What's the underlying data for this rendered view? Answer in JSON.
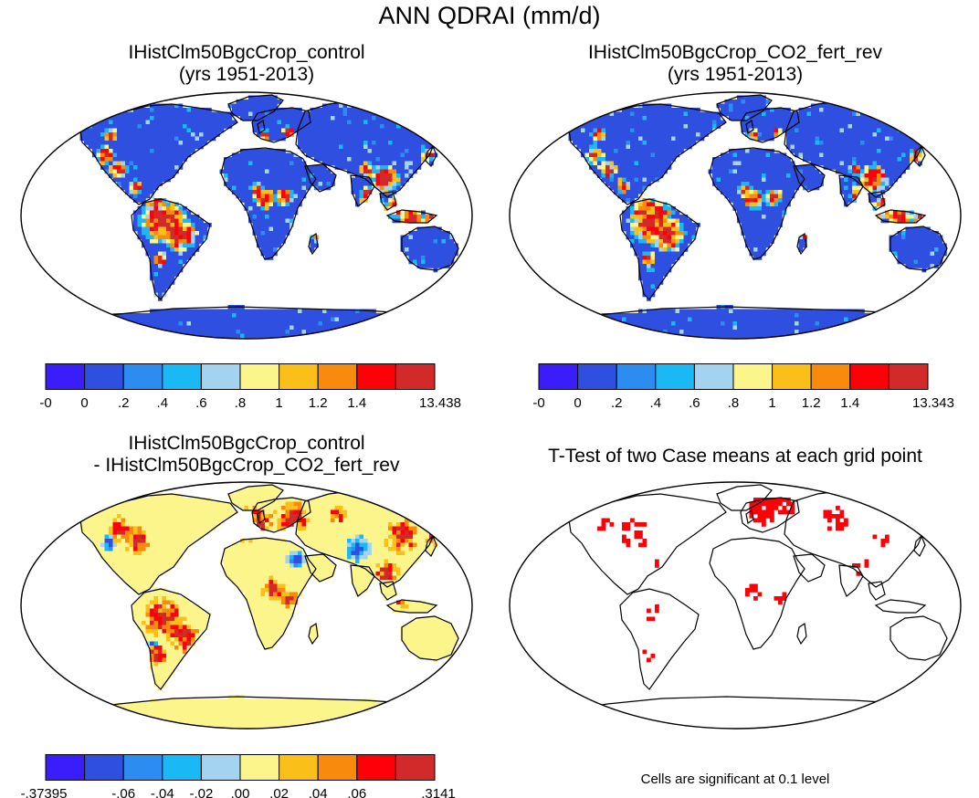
{
  "title": "ANN QDRAI (mm/d)",
  "panels": [
    {
      "id": "control",
      "title_lines": [
        "IHistClm50BgcCrop_control",
        "(yrs 1951-2013)"
      ],
      "kind": "field"
    },
    {
      "id": "co2_fert_rev",
      "title_lines": [
        "IHistClm50BgcCrop_CO2_fert_rev",
        "(yrs 1951-2013)"
      ],
      "kind": "field"
    },
    {
      "id": "difference",
      "title_lines": [
        "IHistClm50BgcCrop_control",
        "- IHistClm50BgcCrop_CO2_fert_rev"
      ],
      "kind": "difference"
    },
    {
      "id": "ttest",
      "title_lines": [
        "T-Test of two Case means at each grid point"
      ],
      "kind": "significance"
    }
  ],
  "colorbars": [
    {
      "id": "control",
      "colors": [
        "#3a1dfa",
        "#2e4fe0",
        "#2c8cf0",
        "#1ab8f5",
        "#a3d3ef",
        "#fbf58c",
        "#fbbf19",
        "#f88b0e",
        "#fd0008",
        "#d22a2b"
      ],
      "ticks": [
        "-0",
        "0",
        ".2",
        ".4",
        ".6",
        ".8",
        "1",
        "1.2",
        "1.4",
        "13.438"
      ]
    },
    {
      "id": "co2_fert_rev",
      "colors": [
        "#3a1dfa",
        "#2e4fe0",
        "#2c8cf0",
        "#1ab8f5",
        "#a3d3ef",
        "#fbf58c",
        "#fbbf19",
        "#f88b0e",
        "#fd0008",
        "#d22a2b"
      ],
      "ticks": [
        "-0",
        "0",
        ".2",
        ".4",
        ".6",
        ".8",
        "1",
        "1.2",
        "1.4",
        "13.343"
      ]
    },
    {
      "id": "difference",
      "colors": [
        "#3a1dfa",
        "#2e4fe0",
        "#2c8cf0",
        "#1ab8f5",
        "#a3d3ef",
        "#fbf58c",
        "#fbbf19",
        "#f88b0e",
        "#fd0008",
        "#d22a2b"
      ],
      "ticks": [
        "-.37395",
        "-.06",
        "-.04",
        "-.02",
        ".00",
        ".02",
        ".04",
        ".06",
        ".3141"
      ]
    }
  ],
  "significance_note": "Cells are significant at 0.1 level",
  "significance_color": "#fd0008"
}
